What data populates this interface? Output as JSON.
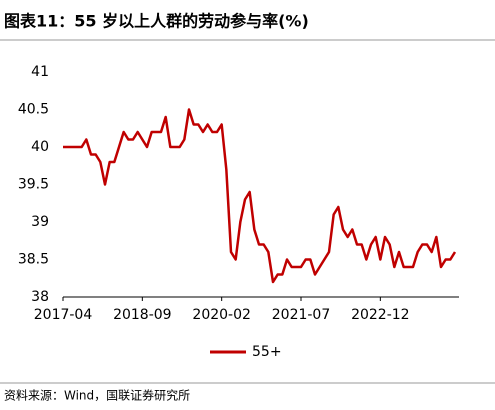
{
  "chart_data": {
    "type": "line",
    "title": "图表11：55 岁以上人群的劳动参与率(%)",
    "source": "资料来源：Wind，国联证券研究所",
    "x": [
      "2017-04",
      "2017-05",
      "2017-06",
      "2017-07",
      "2017-08",
      "2017-09",
      "2017-10",
      "2017-11",
      "2017-12",
      "2018-01",
      "2018-02",
      "2018-03",
      "2018-04",
      "2018-05",
      "2018-06",
      "2018-07",
      "2018-08",
      "2018-09",
      "2018-10",
      "2018-11",
      "2018-12",
      "2019-01",
      "2019-02",
      "2019-03",
      "2019-04",
      "2019-05",
      "2019-06",
      "2019-07",
      "2019-08",
      "2019-09",
      "2019-10",
      "2019-11",
      "2019-12",
      "2020-01",
      "2020-02",
      "2020-03",
      "2020-04",
      "2020-05",
      "2020-06",
      "2020-07",
      "2020-08",
      "2020-09",
      "2020-10",
      "2020-11",
      "2020-12",
      "2021-01",
      "2021-02",
      "2021-03",
      "2021-04",
      "2021-05",
      "2021-06",
      "2021-07",
      "2021-08",
      "2021-09",
      "2021-10",
      "2021-11",
      "2021-12",
      "2022-01",
      "2022-02",
      "2022-03",
      "2022-04",
      "2022-05",
      "2022-06",
      "2022-07",
      "2022-08",
      "2022-09",
      "2022-10",
      "2022-11",
      "2022-12",
      "2023-01",
      "2023-02",
      "2023-03",
      "2023-04",
      "2023-05",
      "2023-06",
      "2023-07",
      "2023-08",
      "2023-09",
      "2023-10",
      "2023-11",
      "2023-12",
      "2024-01",
      "2024-02",
      "2024-03",
      "2024-04"
    ],
    "series": [
      {
        "name": "55+",
        "color": "#c00000",
        "values": [
          40,
          40,
          40,
          40,
          40,
          40.1,
          39.9,
          39.9,
          39.8,
          39.5,
          39.8,
          39.8,
          40,
          40.2,
          40.1,
          40.1,
          40.2,
          40.1,
          40,
          40.2,
          40.2,
          40.2,
          40.4,
          40,
          40,
          40,
          40.1,
          40.5,
          40.3,
          40.3,
          40.2,
          40.3,
          40.2,
          40.2,
          40.3,
          39.7,
          38.6,
          38.5,
          39.0,
          39.3,
          39.4,
          38.9,
          38.7,
          38.7,
          38.6,
          38.2,
          38.3,
          38.3,
          38.5,
          38.4,
          38.4,
          38.4,
          38.5,
          38.5,
          38.3,
          38.4,
          38.5,
          38.6,
          39.1,
          39.2,
          38.9,
          38.8,
          38.9,
          38.7,
          38.7,
          38.5,
          38.7,
          38.8,
          38.5,
          38.8,
          38.7,
          38.4,
          38.6,
          38.4,
          38.4,
          38.4,
          38.6,
          38.7,
          38.7,
          38.6,
          38.8,
          38.4,
          38.5,
          38.5,
          38.6
        ]
      }
    ],
    "ylim": [
      38,
      41
    ],
    "yticks": [
      38,
      38.5,
      39,
      39.5,
      40,
      40.5,
      41
    ]
  }
}
